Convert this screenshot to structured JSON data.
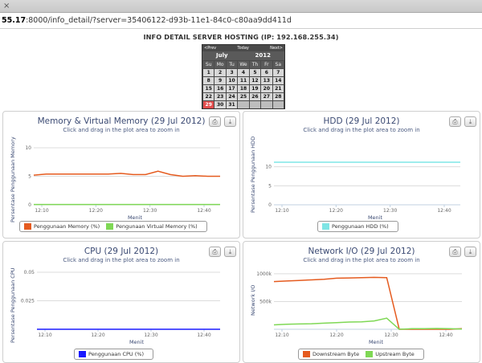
{
  "browser": {
    "tab_close": "×",
    "url_host": "55.17",
    "url_rest": ":8000/info_detail/?server=35406122-d93b-11e1-84c0-c80aa9dd411d"
  },
  "page": {
    "title": "INFO DETAIL SERVER HOSTING (IP: 192.168.255.34)"
  },
  "calendar": {
    "prev": "<Prev",
    "today": "Today",
    "next": "Next>",
    "month": "July",
    "year": "2012",
    "dow": [
      "Su",
      "Mo",
      "Tu",
      "We",
      "Th",
      "Fr",
      "Sa"
    ],
    "weeks": [
      [
        "1",
        "2",
        "3",
        "4",
        "5",
        "6",
        "7"
      ],
      [
        "8",
        "9",
        "10",
        "11",
        "12",
        "13",
        "14"
      ],
      [
        "15",
        "16",
        "17",
        "18",
        "19",
        "20",
        "21"
      ],
      [
        "22",
        "23",
        "24",
        "25",
        "26",
        "27",
        "28"
      ],
      [
        "29",
        "30",
        "31",
        "",
        "",
        "",
        ""
      ]
    ],
    "selected_day": "29"
  },
  "icons": {
    "print": "print-icon",
    "download": "download-icon"
  },
  "colors": {
    "title": "#3b4a73",
    "orange": "#e55b1f",
    "green": "#7fd855",
    "cyan": "#7fe5e5",
    "blue": "#1a1aff",
    "grid": "#d8d8d8"
  },
  "chart_data": [
    {
      "id": "memory",
      "type": "line",
      "title": "Memory & Virtual Memory (29 Jul 2012)",
      "subtitle": "Click and drag in the plot area to zoom in",
      "xlabel": "Menit",
      "ylabel": "Persentase Penggunaan Memory",
      "x_ticks": [
        "12:10",
        "12:20",
        "12:30",
        "12:40"
      ],
      "y_ticks": [
        "0",
        "5",
        "10"
      ],
      "ylim": [
        0,
        10
      ],
      "series": [
        {
          "name": "Penggunaan Memory (%)",
          "color": "#e55b1f",
          "values": [
            5.2,
            5.4,
            5.4,
            5.4,
            5.4,
            5.4,
            5.4,
            5.5,
            5.3,
            5.3,
            5.9,
            5.3,
            5.0,
            5.1,
            5.0,
            5.0
          ]
        },
        {
          "name": "Pengunaan Virtual Memory (%)",
          "color": "#7fd855",
          "values": [
            0.05,
            0.05,
            0.05,
            0.05,
            0.05,
            0.05,
            0.05,
            0.05,
            0.05,
            0.05,
            0.05,
            0.05,
            0.05,
            0.05,
            0.05,
            0.05
          ]
        }
      ]
    },
    {
      "id": "hdd",
      "type": "line",
      "title": "HDD (29 Jul 2012)",
      "subtitle": "Click and drag in the plot area to zoom in",
      "xlabel": "Menit",
      "ylabel": "Persentase Penggunaan HDD",
      "x_ticks": [
        "12:10",
        "12:20",
        "12:30",
        "12:40"
      ],
      "y_ticks": [
        "0",
        "5",
        "10"
      ],
      "ylim": [
        0,
        15
      ],
      "series": [
        {
          "name": "Penggunaan HDD (%)",
          "color": "#7fe5e5",
          "values": [
            11.2,
            11.2,
            11.2,
            11.2,
            11.2,
            11.2,
            11.2,
            11.2,
            11.2,
            11.2,
            11.2,
            11.2,
            11.2,
            11.2,
            11.2,
            11.2
          ]
        }
      ]
    },
    {
      "id": "cpu",
      "type": "line",
      "title": "CPU (29 Jul 2012)",
      "subtitle": "Click and drag in the plot area to zoom in",
      "xlabel": "Menit",
      "ylabel": "Persentase Penggunaan CPU",
      "x_ticks": [
        "12:10",
        "12:20",
        "12:30",
        "12:40"
      ],
      "y_ticks": [
        "0.025",
        "0.05"
      ],
      "ylim": [
        0,
        0.05
      ],
      "series": [
        {
          "name": "Penggunaan CPU (%)",
          "color": "#1a1aff",
          "values": [
            0,
            0,
            0,
            0,
            0,
            0,
            0,
            0,
            0,
            0,
            0,
            0,
            0,
            0,
            0,
            0
          ]
        }
      ]
    },
    {
      "id": "network",
      "type": "line",
      "title": "Network I/O (29 Jul 2012)",
      "subtitle": "Click and drag in the plot area to zoom in",
      "xlabel": "Menit",
      "ylabel": "Network I/O",
      "x_ticks": [
        "12:10",
        "12:20",
        "12:30",
        "12:40"
      ],
      "y_ticks": [
        "500k",
        "1000k"
      ],
      "ylim": [
        0,
        1100000
      ],
      "series": [
        {
          "name": "Downstream Byte",
          "color": "#e55b1f",
          "values": [
            860000,
            870000,
            880000,
            890000,
            900000,
            920000,
            925000,
            930000,
            935000,
            930000,
            0,
            0,
            0,
            0,
            0,
            10000
          ]
        },
        {
          "name": "Upstream Byte",
          "color": "#7fd855",
          "values": [
            80000,
            90000,
            95000,
            100000,
            110000,
            120000,
            130000,
            135000,
            150000,
            200000,
            0,
            10000,
            10000,
            15000,
            10000,
            5000
          ]
        }
      ]
    }
  ]
}
